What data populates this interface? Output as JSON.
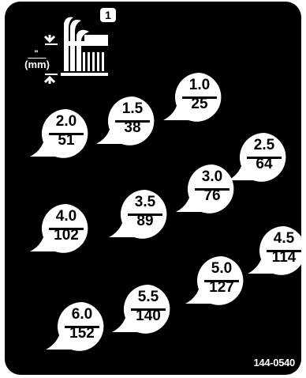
{
  "header": {
    "step_number": "1",
    "unit_top": "\"",
    "unit_bottom": "mm",
    "icon": "cutting-height-icon"
  },
  "settings": [
    {
      "inch": "1.0",
      "mm": "25"
    },
    {
      "inch": "1.5",
      "mm": "38"
    },
    {
      "inch": "2.0",
      "mm": "51"
    },
    {
      "inch": "2.5",
      "mm": "64"
    },
    {
      "inch": "3.0",
      "mm": "76"
    },
    {
      "inch": "3.5",
      "mm": "89"
    },
    {
      "inch": "4.0",
      "mm": "102"
    },
    {
      "inch": "4.5",
      "mm": "114"
    },
    {
      "inch": "5.0",
      "mm": "127"
    },
    {
      "inch": "5.5",
      "mm": "140"
    },
    {
      "inch": "6.0",
      "mm": "152"
    }
  ],
  "part_number": "144-0540",
  "colors": {
    "background": "#000000",
    "foreground": "#ffffff"
  }
}
